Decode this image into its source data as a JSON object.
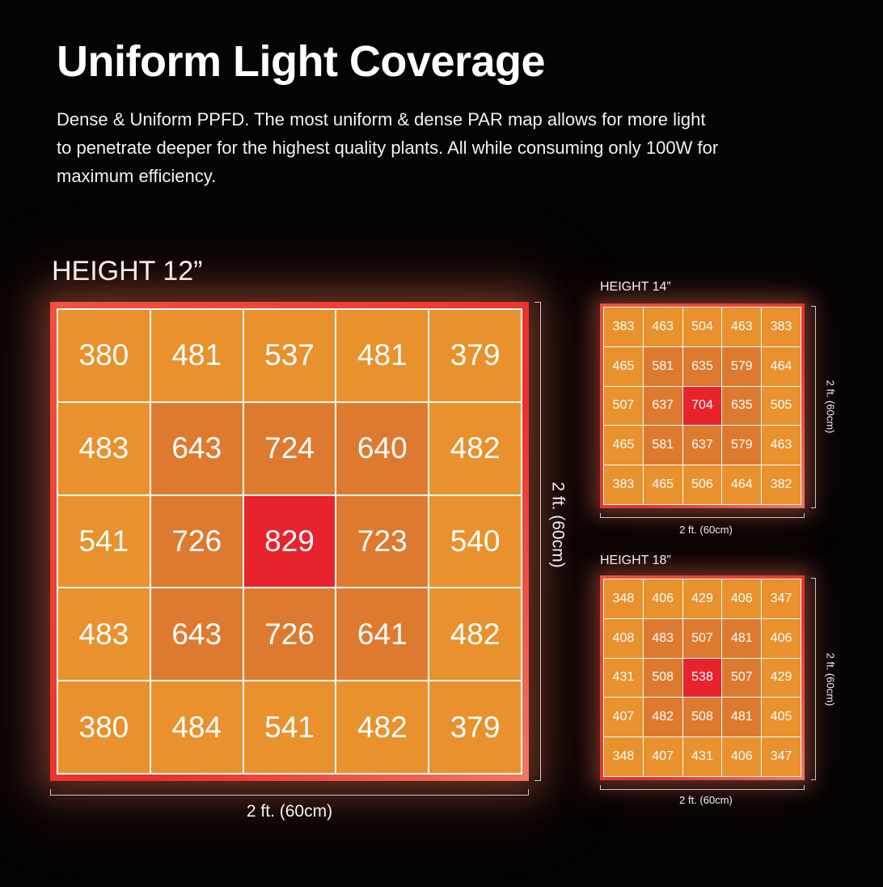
{
  "title": "Uniform Light Coverage",
  "description": "Dense & Uniform PPFD. The most uniform & dense PAR map allows for more light to penetrate deeper for the highest quality plants.  All while consuming only 100W for maximum efficiency.",
  "colors": {
    "background": "#050404",
    "cell_low": "#e8912d",
    "cell_mid": "#de7a30",
    "cell_peak": "#e8232d",
    "frame": "#ea2f2a",
    "grid_line": "#ffffff"
  },
  "chart_data": [
    {
      "type": "heatmap",
      "title": "HEIGHT 12”",
      "xlabel": "2 ft. (60cm)",
      "ylabel": "2 ft. (60cm)",
      "rows": 5,
      "cols": 5,
      "values": [
        [
          380,
          481,
          537,
          481,
          379
        ],
        [
          483,
          643,
          724,
          640,
          482
        ],
        [
          541,
          726,
          829,
          723,
          540
        ],
        [
          483,
          643,
          726,
          641,
          482
        ],
        [
          380,
          484,
          541,
          482,
          379
        ]
      ],
      "tiers": [
        [
          0,
          0,
          0,
          0,
          0
        ],
        [
          0,
          1,
          1,
          1,
          0
        ],
        [
          0,
          1,
          2,
          1,
          0
        ],
        [
          0,
          1,
          1,
          1,
          0
        ],
        [
          0,
          0,
          0,
          0,
          0
        ]
      ]
    },
    {
      "type": "heatmap",
      "title": "HEIGHT 14”",
      "xlabel": "2 ft. (60cm)",
      "ylabel": "2 ft. (60cm)",
      "rows": 5,
      "cols": 5,
      "values": [
        [
          383,
          463,
          504,
          463,
          383
        ],
        [
          465,
          581,
          635,
          579,
          464
        ],
        [
          507,
          637,
          704,
          635,
          505
        ],
        [
          465,
          581,
          637,
          579,
          463
        ],
        [
          383,
          465,
          506,
          464,
          382
        ]
      ],
      "tiers": [
        [
          0,
          0,
          0,
          0,
          0
        ],
        [
          0,
          1,
          1,
          1,
          0
        ],
        [
          0,
          1,
          2,
          1,
          0
        ],
        [
          0,
          1,
          1,
          1,
          0
        ],
        [
          0,
          0,
          0,
          0,
          0
        ]
      ]
    },
    {
      "type": "heatmap",
      "title": "HEIGHT 18”",
      "xlabel": "2 ft. (60cm)",
      "ylabel": "2 ft. (60cm)",
      "rows": 5,
      "cols": 5,
      "values": [
        [
          348,
          406,
          429,
          406,
          347
        ],
        [
          408,
          483,
          507,
          481,
          406
        ],
        [
          431,
          508,
          538,
          507,
          429
        ],
        [
          407,
          482,
          508,
          481,
          405
        ],
        [
          348,
          407,
          431,
          406,
          347
        ]
      ],
      "tiers": [
        [
          0,
          0,
          0,
          0,
          0
        ],
        [
          0,
          1,
          1,
          1,
          0
        ],
        [
          0,
          1,
          2,
          1,
          0
        ],
        [
          0,
          1,
          1,
          1,
          0
        ],
        [
          0,
          0,
          0,
          0,
          0
        ]
      ]
    }
  ]
}
